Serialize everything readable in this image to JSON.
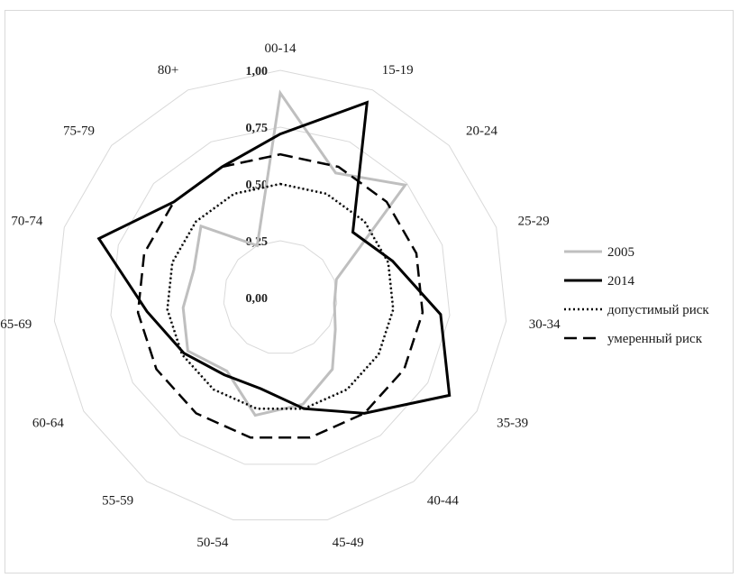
{
  "chart_data": {
    "type": "radar",
    "categories": [
      "00-14",
      "15-19",
      "20-24",
      "25-29",
      "30-34",
      "35-39",
      "40-44",
      "45-49",
      "50-54",
      "55-59",
      "60-64",
      "65-69",
      "70-74",
      "75-79",
      "80+"
    ],
    "radial_ticks": [
      "0,00",
      "0,25",
      "0,50",
      "0,75",
      "1,00"
    ],
    "rlim": [
      0,
      1
    ],
    "legend_position": "right",
    "series": [
      {
        "name": "2005",
        "color": "#bfbfbf",
        "style": "solid",
        "values": [
          0.9,
          0.6,
          0.74,
          0.26,
          0.24,
          0.28,
          0.39,
          0.48,
          0.53,
          0.4,
          0.47,
          0.43,
          0.4,
          0.47,
          0.25
        ]
      },
      {
        "name": "2014",
        "color": "#000000",
        "style": "solid",
        "values": [
          0.72,
          0.94,
          0.43,
          0.52,
          0.71,
          0.86,
          0.63,
          0.5,
          0.41,
          0.42,
          0.49,
          0.59,
          0.84,
          0.63,
          0.63
        ]
      },
      {
        "name": "допустимый риск",
        "color": "#000000",
        "style": "dotted",
        "values": [
          0.5,
          0.5,
          0.5,
          0.5,
          0.5,
          0.5,
          0.5,
          0.5,
          0.5,
          0.5,
          0.5,
          0.5,
          0.5,
          0.5,
          0.5
        ]
      },
      {
        "name": "умеренный риск",
        "color": "#000000",
        "style": "dashed",
        "values": [
          0.63,
          0.63,
          0.63,
          0.63,
          0.63,
          0.63,
          0.63,
          0.63,
          0.63,
          0.63,
          0.63,
          0.63,
          0.63,
          0.63,
          0.63
        ]
      }
    ]
  }
}
